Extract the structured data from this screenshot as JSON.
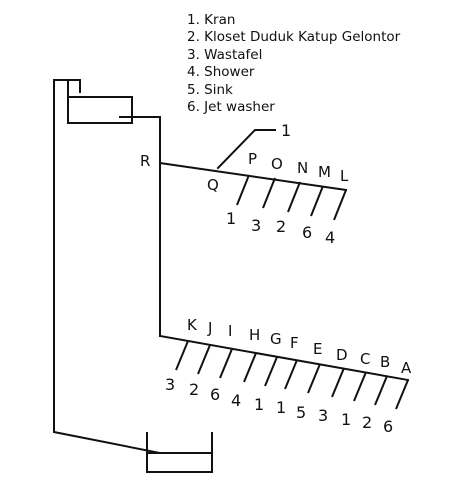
{
  "legend": [
    "1. Kran",
    "2. Kloset Duduk Katup Gelontor",
    "3. Wastafel",
    "4. Shower",
    "5. Sink",
    "6. Jet washer"
  ],
  "node_labels": {
    "R": "R",
    "Q": "Q",
    "P": "P",
    "O": "O",
    "N": "N",
    "M": "M",
    "L": "L",
    "K": "K",
    "J": "J",
    "I": "I",
    "H": "H",
    "G": "G",
    "F": "F",
    "E": "E",
    "D": "D",
    "C": "C",
    "B": "B",
    "A": "A"
  },
  "upper_branch_fixtures": [
    "1",
    "3",
    "2",
    "6",
    "4"
  ],
  "lower_branch_fixtures": [
    "3",
    "2",
    "6",
    "4",
    "1",
    "1",
    "5",
    "3",
    "1",
    "2",
    "6"
  ],
  "q_callout": "1"
}
